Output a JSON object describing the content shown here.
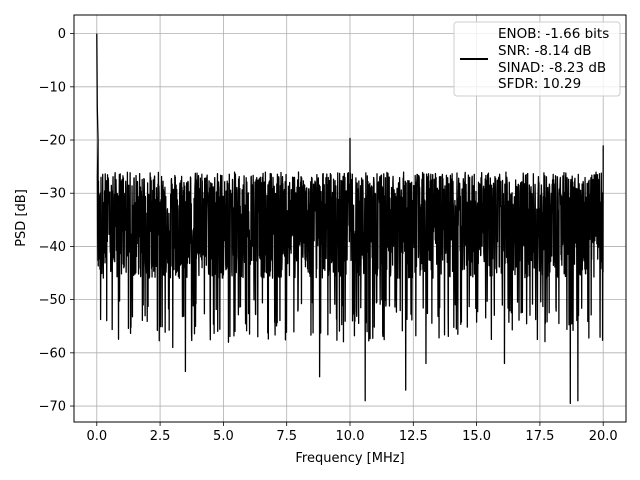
{
  "chart_data": {
    "type": "line",
    "title": "",
    "xlabel": "Frequency [MHz]",
    "ylabel": "PSD [dB]",
    "xlim": [
      -0.9,
      20.9
    ],
    "ylim": [
      -73,
      3.5
    ],
    "xticks": [
      0.0,
      2.5,
      5.0,
      7.5,
      10.0,
      12.5,
      15.0,
      17.5,
      20.0
    ],
    "xtick_labels": [
      "0.0",
      "2.5",
      "5.0",
      "7.5",
      "10.0",
      "12.5",
      "15.0",
      "17.5",
      "20.0"
    ],
    "yticks": [
      0,
      -10,
      -20,
      -30,
      -40,
      -50,
      -60,
      -70
    ],
    "ytick_labels": [
      "0",
      "−10",
      "−20",
      "−30",
      "−40",
      "−50",
      "−60",
      "−70"
    ],
    "grid": true,
    "legend_position": "top-right",
    "legend_lines": [
      "ENOB: -1.66 bits",
      "SNR: -8.14 dB",
      "SINAD: -8.23 dB",
      "SFDR: 10.29"
    ],
    "series_color": "#000000",
    "noise_floor": {
      "frequency_range_mhz": [
        0.0,
        20.0
      ],
      "mean_db": -37,
      "upper_envelope_db": -25,
      "lower_extremes_db": [
        -50,
        -69
      ]
    },
    "peaks": [
      {
        "x": 0.0,
        "y": 0.0
      },
      {
        "x": 0.02,
        "y": -14
      },
      {
        "x": 0.05,
        "y": -20
      },
      {
        "x": 10.0,
        "y": -19.7
      },
      {
        "x": 20.0,
        "y": -21
      }
    ],
    "dips": [
      {
        "x": 3.5,
        "y": -63.5
      },
      {
        "x": 8.8,
        "y": -64.5
      },
      {
        "x": 10.6,
        "y": -69
      },
      {
        "x": 12.2,
        "y": -67
      },
      {
        "x": 18.7,
        "y": -69.5
      },
      {
        "x": 19.0,
        "y": -69
      },
      {
        "x": 3.0,
        "y": -59
      },
      {
        "x": 5.2,
        "y": -58
      },
      {
        "x": 16.1,
        "y": -62
      },
      {
        "x": 13.0,
        "y": -62
      }
    ]
  }
}
